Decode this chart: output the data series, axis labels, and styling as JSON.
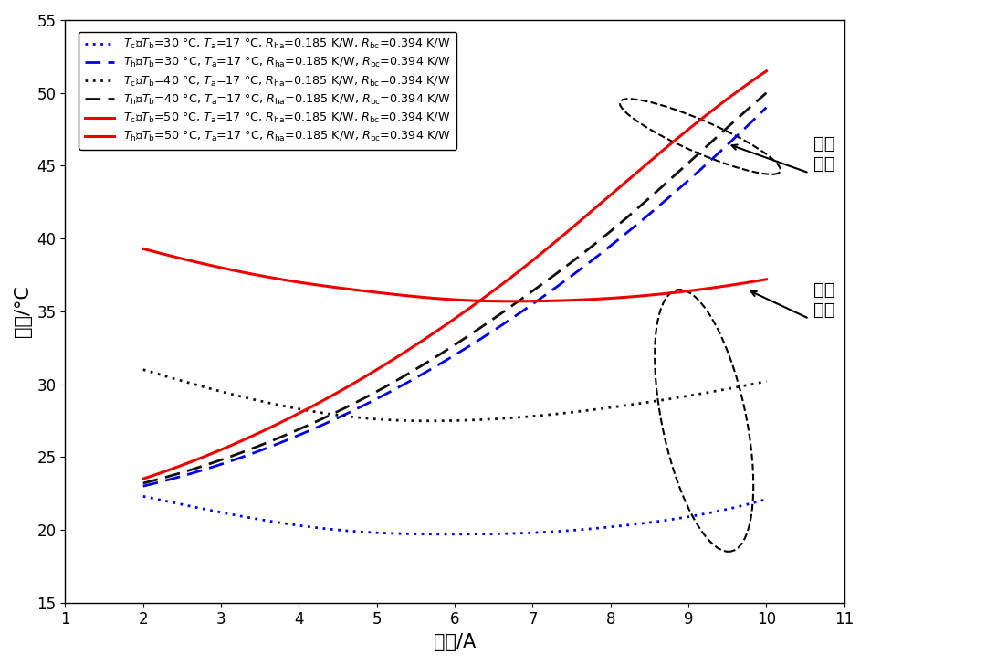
{
  "xlabel": "电流/A",
  "ylabel": "温度/°C",
  "xlim": [
    1,
    11
  ],
  "ylim": [
    15,
    55
  ],
  "xticks": [
    1,
    2,
    3,
    4,
    5,
    6,
    7,
    8,
    9,
    10,
    11
  ],
  "yticks": [
    15,
    20,
    25,
    30,
    35,
    40,
    45,
    50,
    55
  ],
  "ann1_text": "热端\n温度",
  "ann2_text": "冷端\n温度",
  "colors": {
    "blue": "#0000EE",
    "black": "#111111",
    "red": "#EE0000"
  },
  "curves": {
    "tc30_pts": [
      [
        2,
        22.3
      ],
      [
        3,
        21.2
      ],
      [
        4,
        20.3
      ],
      [
        5,
        19.8
      ],
      [
        6,
        19.7
      ],
      [
        7,
        19.8
      ],
      [
        8,
        20.2
      ],
      [
        9,
        20.9
      ],
      [
        10,
        22.1
      ]
    ],
    "th30_pts": [
      [
        2,
        23.0
      ],
      [
        3,
        24.5
      ],
      [
        4,
        26.5
      ],
      [
        5,
        29.0
      ],
      [
        6,
        32.0
      ],
      [
        7,
        35.5
      ],
      [
        8,
        39.5
      ],
      [
        9,
        44.0
      ],
      [
        10,
        49.0
      ]
    ],
    "tc40_pts": [
      [
        2,
        31.0
      ],
      [
        3,
        29.5
      ],
      [
        4,
        28.3
      ],
      [
        5,
        27.6
      ],
      [
        6,
        27.5
      ],
      [
        7,
        27.8
      ],
      [
        8,
        28.4
      ],
      [
        9,
        29.2
      ],
      [
        10,
        30.2
      ]
    ],
    "th40_pts": [
      [
        2,
        23.2
      ],
      [
        3,
        24.8
      ],
      [
        4,
        26.9
      ],
      [
        5,
        29.5
      ],
      [
        6,
        32.7
      ],
      [
        7,
        36.4
      ],
      [
        8,
        40.5
      ],
      [
        9,
        45.2
      ],
      [
        10,
        50.0
      ]
    ],
    "tc50_pts": [
      [
        2,
        39.3
      ],
      [
        3,
        38.0
      ],
      [
        4,
        37.0
      ],
      [
        5,
        36.3
      ],
      [
        6,
        35.8
      ],
      [
        7,
        35.7
      ],
      [
        8,
        35.9
      ],
      [
        9,
        36.4
      ],
      [
        10,
        37.2
      ]
    ],
    "th50_pts": [
      [
        2,
        23.5
      ],
      [
        3,
        25.5
      ],
      [
        4,
        28.0
      ],
      [
        5,
        31.0
      ],
      [
        6,
        34.5
      ],
      [
        7,
        38.5
      ],
      [
        8,
        43.0
      ],
      [
        9,
        47.5
      ],
      [
        10,
        51.5
      ]
    ]
  }
}
